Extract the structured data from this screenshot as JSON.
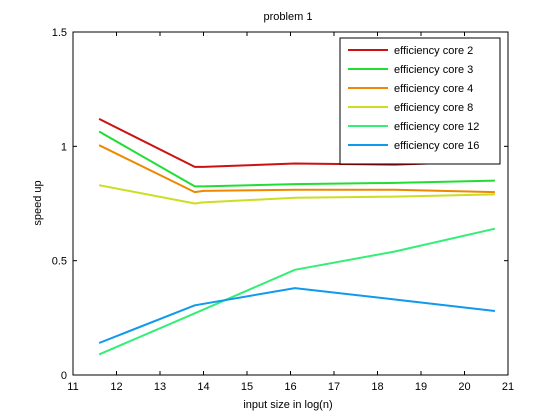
{
  "chart_data": {
    "type": "line",
    "title": "problem 1",
    "xlabel": "input size in log(n)",
    "ylabel": "speed up",
    "xlim": [
      11,
      21
    ],
    "ylim": [
      0,
      1.5
    ],
    "xticks": [
      "11",
      "12",
      "13",
      "14",
      "15",
      "16",
      "17",
      "18",
      "19",
      "20",
      "21"
    ],
    "yticks": [
      "0",
      "0.5",
      "1",
      "1.5"
    ],
    "grid": false,
    "legend_position": "top-right",
    "series": [
      {
        "name": "efficiency core 2",
        "color": "#cc1111",
        "x": [
          11.6,
          13.8,
          14.0,
          16.1,
          18.4,
          20.7
        ],
        "y": [
          1.12,
          0.91,
          0.91,
          0.925,
          0.92,
          0.935
        ]
      },
      {
        "name": "efficiency core 3",
        "color": "#22dd33",
        "x": [
          11.6,
          13.8,
          14.0,
          16.1,
          18.4,
          20.7
        ],
        "y": [
          1.065,
          0.825,
          0.825,
          0.835,
          0.84,
          0.85
        ]
      },
      {
        "name": "efficiency core 4",
        "color": "#ee8800",
        "x": [
          11.6,
          13.8,
          14.0,
          16.1,
          18.4,
          20.7
        ],
        "y": [
          1.005,
          0.8,
          0.805,
          0.81,
          0.81,
          0.8
        ]
      },
      {
        "name": "efficiency core 8",
        "color": "#ccdd22",
        "x": [
          11.6,
          13.8,
          14.0,
          16.1,
          18.4,
          20.7
        ],
        "y": [
          0.83,
          0.75,
          0.755,
          0.775,
          0.78,
          0.79
        ]
      },
      {
        "name": "efficiency core 12",
        "color": "#33ee77",
        "x": [
          11.6,
          13.8,
          16.1,
          18.4,
          20.7
        ],
        "y": [
          0.09,
          0.27,
          0.46,
          0.54,
          0.64
        ]
      },
      {
        "name": "efficiency core 16",
        "color": "#1199ee",
        "x": [
          11.6,
          13.8,
          16.1,
          18.4,
          20.7
        ],
        "y": [
          0.14,
          0.305,
          0.38,
          0.33,
          0.28
        ]
      }
    ]
  }
}
